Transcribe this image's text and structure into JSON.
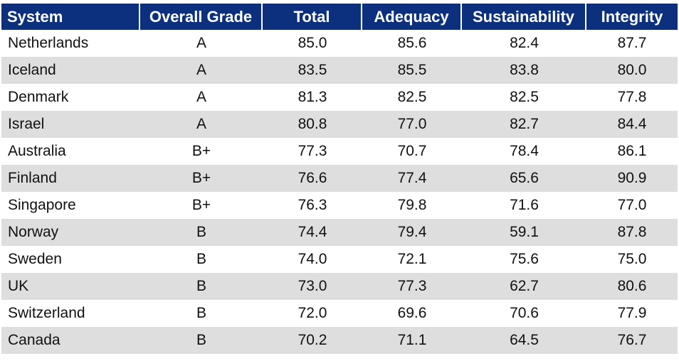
{
  "table": {
    "headers": [
      "System",
      "Overall Grade",
      "Total",
      "Adequacy",
      "Sustainability",
      "Integrity"
    ],
    "rows": [
      [
        "Netherlands",
        "A",
        "85.0",
        "85.6",
        "82.4",
        "87.7"
      ],
      [
        "Iceland",
        "A",
        "83.5",
        "85.5",
        "83.8",
        "80.0"
      ],
      [
        "Denmark",
        "A",
        "81.3",
        "82.5",
        "82.5",
        "77.8"
      ],
      [
        "Israel",
        "A",
        "80.8",
        "77.0",
        "82.7",
        "84.4"
      ],
      [
        "Australia",
        "B+",
        "77.3",
        "70.7",
        "78.4",
        "86.1"
      ],
      [
        "Finland",
        "B+",
        "76.6",
        "77.4",
        "65.6",
        "90.9"
      ],
      [
        "Singapore",
        "B+",
        "76.3",
        "79.8",
        "71.6",
        "77.0"
      ],
      [
        "Norway",
        "B",
        "74.4",
        "79.4",
        "59.1",
        "87.8"
      ],
      [
        "Sweden",
        "B",
        "74.0",
        "72.1",
        "75.6",
        "75.0"
      ],
      [
        "UK",
        "B",
        "73.0",
        "77.3",
        "62.7",
        "80.6"
      ],
      [
        "Switzerland",
        "B",
        "72.0",
        "69.6",
        "70.6",
        "77.9"
      ],
      [
        "Canada",
        "B",
        "70.2",
        "71.1",
        "64.5",
        "76.7"
      ]
    ]
  },
  "colors": {
    "header_bg": "#0c2f7e",
    "header_text": "#ffffff",
    "shaded_row": "#dedede",
    "plain_row": "#ffffff"
  }
}
